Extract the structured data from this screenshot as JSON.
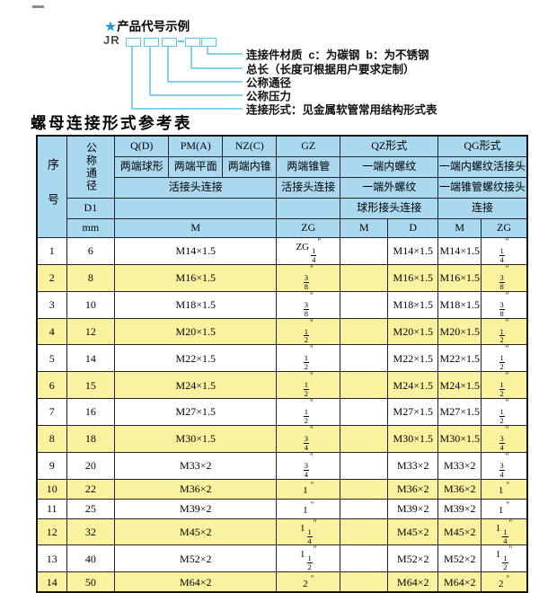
{
  "accent_colors": {
    "header_blue": "#aad9ef",
    "row_yellow": "#fbf2a0",
    "diagram_cyan": "#5ec4e6",
    "star_blue": "#1f97cf"
  },
  "diagram": {
    "star": "★",
    "heading": "产品代号示例",
    "code_prefix": "JR",
    "labels": [
      "连接件材质  c：为碳钢  b：为不锈钢",
      "总长（长度可根据用户要求定制）",
      "公称通径",
      "公称压力",
      "连接形式：见金属软管常用结构形式表"
    ]
  },
  "table": {
    "title": "螺母连接形式参考表",
    "header": {
      "serial": "序号",
      "diameter": "公称通径",
      "d1": "D1",
      "mm": "mm",
      "row1": [
        "Q(D)",
        "PM(A)",
        "NZ(C)",
        "GZ",
        "QZ形式",
        "QG形式"
      ],
      "row2": [
        "两端球形",
        "两端平面",
        "两端内锥",
        "两端锥管",
        "一端内螺纹",
        "一端内螺纹活接头"
      ],
      "row3": [
        "活接头连接",
        "活接头连接",
        "一端外螺纹",
        "一端锥管螺纹接头"
      ],
      "row4": [
        "球形接头连接",
        "连接"
      ],
      "row5": [
        "M",
        "ZG",
        "M",
        "D",
        "M",
        "ZG"
      ]
    },
    "rows": [
      {
        "no": "1",
        "dn": "6",
        "m": "M14×1.5",
        "zg": "ZG 1/4\"",
        "qz_m": "",
        "qz_d": "M14×1.5",
        "qg_m": "M14×1.5",
        "qg_zg": "1/4\""
      },
      {
        "no": "2",
        "dn": "8",
        "m": "M16×1.5",
        "zg": "3/8\"",
        "qz_m": "",
        "qz_d": "M16×1.5",
        "qg_m": "M16×1.5",
        "qg_zg": "3/8\""
      },
      {
        "no": "3",
        "dn": "10",
        "m": "M18×1.5",
        "zg": "3/8\"",
        "qz_m": "",
        "qz_d": "M18×1.5",
        "qg_m": "M18×1.5",
        "qg_zg": "3/8\""
      },
      {
        "no": "4",
        "dn": "12",
        "m": "M20×1.5",
        "zg": "1/2\"",
        "qz_m": "",
        "qz_d": "M20×1.5",
        "qg_m": "M20×1.5",
        "qg_zg": "1/2\""
      },
      {
        "no": "5",
        "dn": "14",
        "m": "M22×1.5",
        "zg": "1/2\"",
        "qz_m": "",
        "qz_d": "M22×1.5",
        "qg_m": "M22×1.5",
        "qg_zg": "1/2\""
      },
      {
        "no": "6",
        "dn": "15",
        "m": "M24×1.5",
        "zg": "1/2\"",
        "qz_m": "",
        "qz_d": "M24×1.5",
        "qg_m": "M24×1.5",
        "qg_zg": "1/2\""
      },
      {
        "no": "7",
        "dn": "16",
        "m": "M27×1.5",
        "zg": "1/2\"",
        "qz_m": "",
        "qz_d": "M27×1.5",
        "qg_m": "M27×1.5",
        "qg_zg": "1/2\""
      },
      {
        "no": "8",
        "dn": "18",
        "m": "M30×1.5",
        "zg": "3/4\"",
        "qz_m": "",
        "qz_d": "M30×1.5",
        "qg_m": "M30×1.5",
        "qg_zg": "3/4\""
      },
      {
        "no": "9",
        "dn": "20",
        "m": "M33×2",
        "zg": "3/4\"",
        "qz_m": "",
        "qz_d": "M33×2",
        "qg_m": "M33×2",
        "qg_zg": "3/4\""
      },
      {
        "no": "10",
        "dn": "22",
        "m": "M36×2",
        "zg": "1\"",
        "qz_m": "",
        "qz_d": "M36×2",
        "qg_m": "M36×2",
        "qg_zg": "1\""
      },
      {
        "no": "11",
        "dn": "25",
        "m": "M39×2",
        "zg": "1\"",
        "qz_m": "",
        "qz_d": "M39×2",
        "qg_m": "M39×2",
        "qg_zg": "1\""
      },
      {
        "no": "12",
        "dn": "32",
        "m": "M45×2",
        "zg": "1 1/4\"",
        "qz_m": "",
        "qz_d": "M45×2",
        "qg_m": "M45×2",
        "qg_zg": "1 1/4\""
      },
      {
        "no": "13",
        "dn": "40",
        "m": "M52×2",
        "zg": "1 1/2\"",
        "qz_m": "",
        "qz_d": "M52×2",
        "qg_m": "M52×2",
        "qg_zg": "1 1/2\""
      },
      {
        "no": "14",
        "dn": "50",
        "m": "M64×2",
        "zg": "2\"",
        "qz_m": "",
        "qz_d": "M64×2",
        "qg_m": "M64×2",
        "qg_zg": "2\""
      }
    ]
  }
}
